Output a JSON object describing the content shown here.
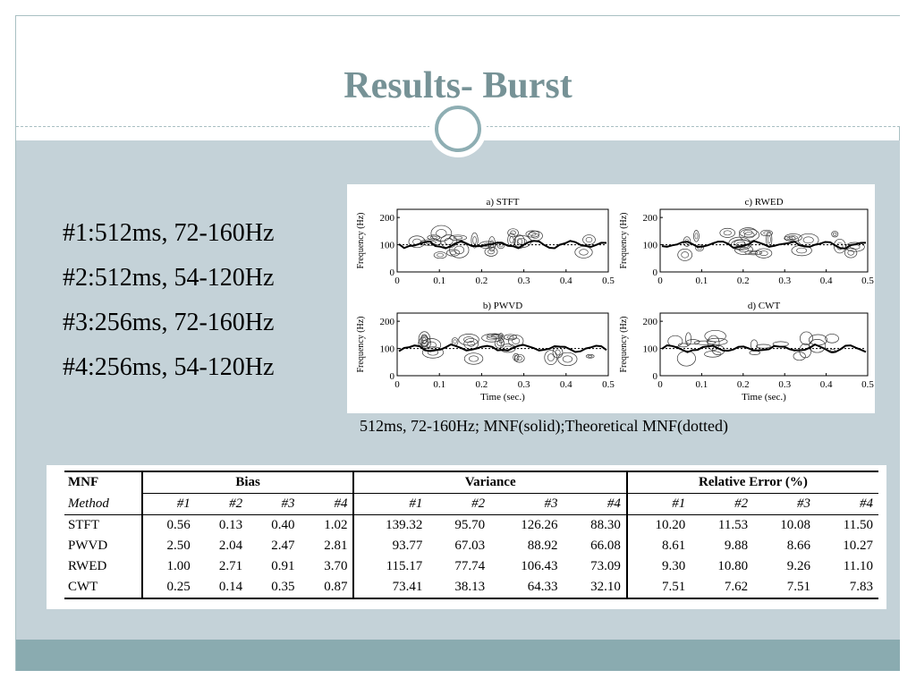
{
  "title": "Results- Burst",
  "bullets": [
    "#1:512ms, 72-160Hz",
    "#2:512ms, 54-120Hz",
    "#3:256ms, 72-160Hz",
    "#4:256ms, 54-120Hz"
  ],
  "figure": {
    "panels": [
      {
        "label": "a) STFT",
        "ylabel": "Frequency (Hz)",
        "xlabel": ""
      },
      {
        "label": "c) RWED",
        "ylabel": "Frequency (Hz)",
        "xlabel": ""
      },
      {
        "label": "b) PWVD",
        "ylabel": "Frequency (Hz)",
        "xlabel": "Time (sec.)"
      },
      {
        "label": "d) CWT",
        "ylabel": "Frequency (Hz)",
        "xlabel": "Time (sec.)"
      }
    ],
    "xticks": [
      "0",
      "0.1",
      "0.2",
      "0.3",
      "0.4",
      "0.5"
    ],
    "yticks": [
      "0",
      "100",
      "200"
    ]
  },
  "caption": "512ms, 72-160Hz; MNF(solid);Theoretical MNF(dotted)",
  "table": {
    "corner": "MNF",
    "method_label": "Method",
    "groups": [
      "Bias",
      "Variance",
      "Relative Error (%)"
    ],
    "subheaders": [
      "#1",
      "#2",
      "#3",
      "#4",
      "#1",
      "#2",
      "#3",
      "#4",
      "#1",
      "#2",
      "#3",
      "#4"
    ],
    "rows": [
      {
        "method": "STFT",
        "values": [
          "0.56",
          "0.13",
          "0.40",
          "1.02",
          "139.32",
          "95.70",
          "126.26",
          "88.30",
          "10.20",
          "11.53",
          "10.08",
          "11.50"
        ]
      },
      {
        "method": "PWVD",
        "values": [
          "2.50",
          "2.04",
          "2.47",
          "2.81",
          "93.77",
          "67.03",
          "88.92",
          "66.08",
          "8.61",
          "9.88",
          "8.66",
          "10.27"
        ]
      },
      {
        "method": "RWED",
        "values": [
          "1.00",
          "2.71",
          "0.91",
          "3.70",
          "115.17",
          "77.74",
          "106.43",
          "73.09",
          "9.30",
          "10.80",
          "9.26",
          "11.10"
        ]
      },
      {
        "method": "CWT",
        "values": [
          "0.25",
          "0.14",
          "0.35",
          "0.87",
          "73.41",
          "38.13",
          "64.33",
          "32.10",
          "7.51",
          "7.62",
          "7.51",
          "7.83"
        ]
      }
    ]
  }
}
